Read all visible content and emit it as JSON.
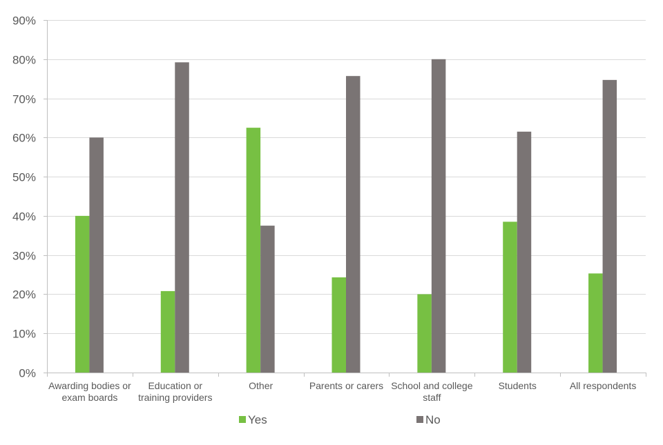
{
  "chart_data": {
    "type": "bar",
    "title": "",
    "xlabel": "",
    "ylabel": "",
    "ylim": [
      0,
      90
    ],
    "y_ticks": [
      0,
      10,
      20,
      30,
      40,
      50,
      60,
      70,
      80,
      90
    ],
    "y_tick_labels": [
      "0%",
      "10%",
      "20%",
      "30%",
      "40%",
      "50%",
      "60%",
      "70%",
      "80%",
      "90%"
    ],
    "grid": true,
    "legend_position": "bottom",
    "categories": [
      [
        "Awarding bodies or",
        "exam boards"
      ],
      [
        "Education or",
        "training providers"
      ],
      [
        "Other"
      ],
      [
        "Parents or carers"
      ],
      [
        "School and college",
        "staff"
      ],
      [
        "Students"
      ],
      [
        "All respondents"
      ]
    ],
    "series": [
      {
        "name": "Yes",
        "color": "#77c043",
        "values": [
          40,
          20.8,
          62.5,
          24.3,
          20,
          38.5,
          25.3
        ]
      },
      {
        "name": "No",
        "color": "#7a7474",
        "values": [
          60,
          79.2,
          37.5,
          75.7,
          80,
          61.5,
          74.7
        ]
      }
    ],
    "colors": {
      "gridline": "#d9d9d9",
      "axis": "#bfbfbf",
      "text": "#595959"
    }
  }
}
